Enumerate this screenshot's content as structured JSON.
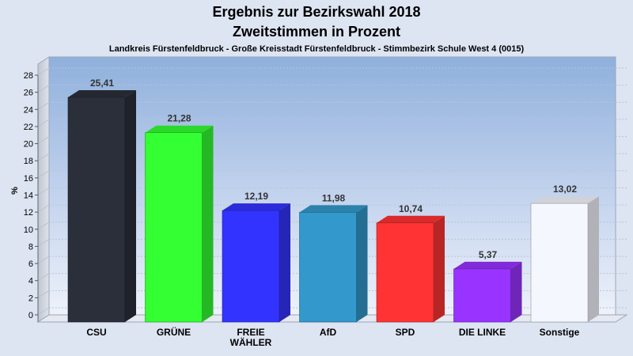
{
  "chart_data": {
    "type": "bar",
    "title": "Ergebnis zur Bezirkswahl 2018",
    "title2": "Zweitstimmen in Prozent",
    "subtitle": "Landkreis Fürstenfeldbruck - Große Kreisstadt Fürstenfeldbruck - Stimmbezirk Schule West 4 (0015)",
    "ylabel": "%",
    "xlabel": "",
    "ylim": [
      0,
      28
    ],
    "yticks": [
      "0",
      "2",
      "4",
      "6",
      "8",
      "10",
      "12",
      "14",
      "16",
      "18",
      "20",
      "22",
      "24",
      "26",
      "28"
    ],
    "grid": true,
    "categories": [
      "CSU",
      "GRÜNE",
      "FREIE WÄHLER",
      "AfD",
      "SPD",
      "DIE LINKE",
      "Sonstige"
    ],
    "category_lines": [
      [
        "CSU"
      ],
      [
        "GRÜNE"
      ],
      [
        "FREIE",
        "WÄHLER"
      ],
      [
        "AfD"
      ],
      [
        "SPD"
      ],
      [
        "DIE LINKE"
      ],
      [
        "Sonstige"
      ]
    ],
    "values": [
      25.41,
      21.28,
      12.19,
      11.98,
      10.74,
      5.37,
      13.02
    ],
    "value_labels": [
      "25,41",
      "21,28",
      "12,19",
      "11,98",
      "10,74",
      "5,37",
      "13,02"
    ],
    "colors": [
      "#2b2f3a",
      "#33ff33",
      "#3333ff",
      "#3399cc",
      "#ff3333",
      "#9933ff",
      "#f5f7ff"
    ]
  }
}
